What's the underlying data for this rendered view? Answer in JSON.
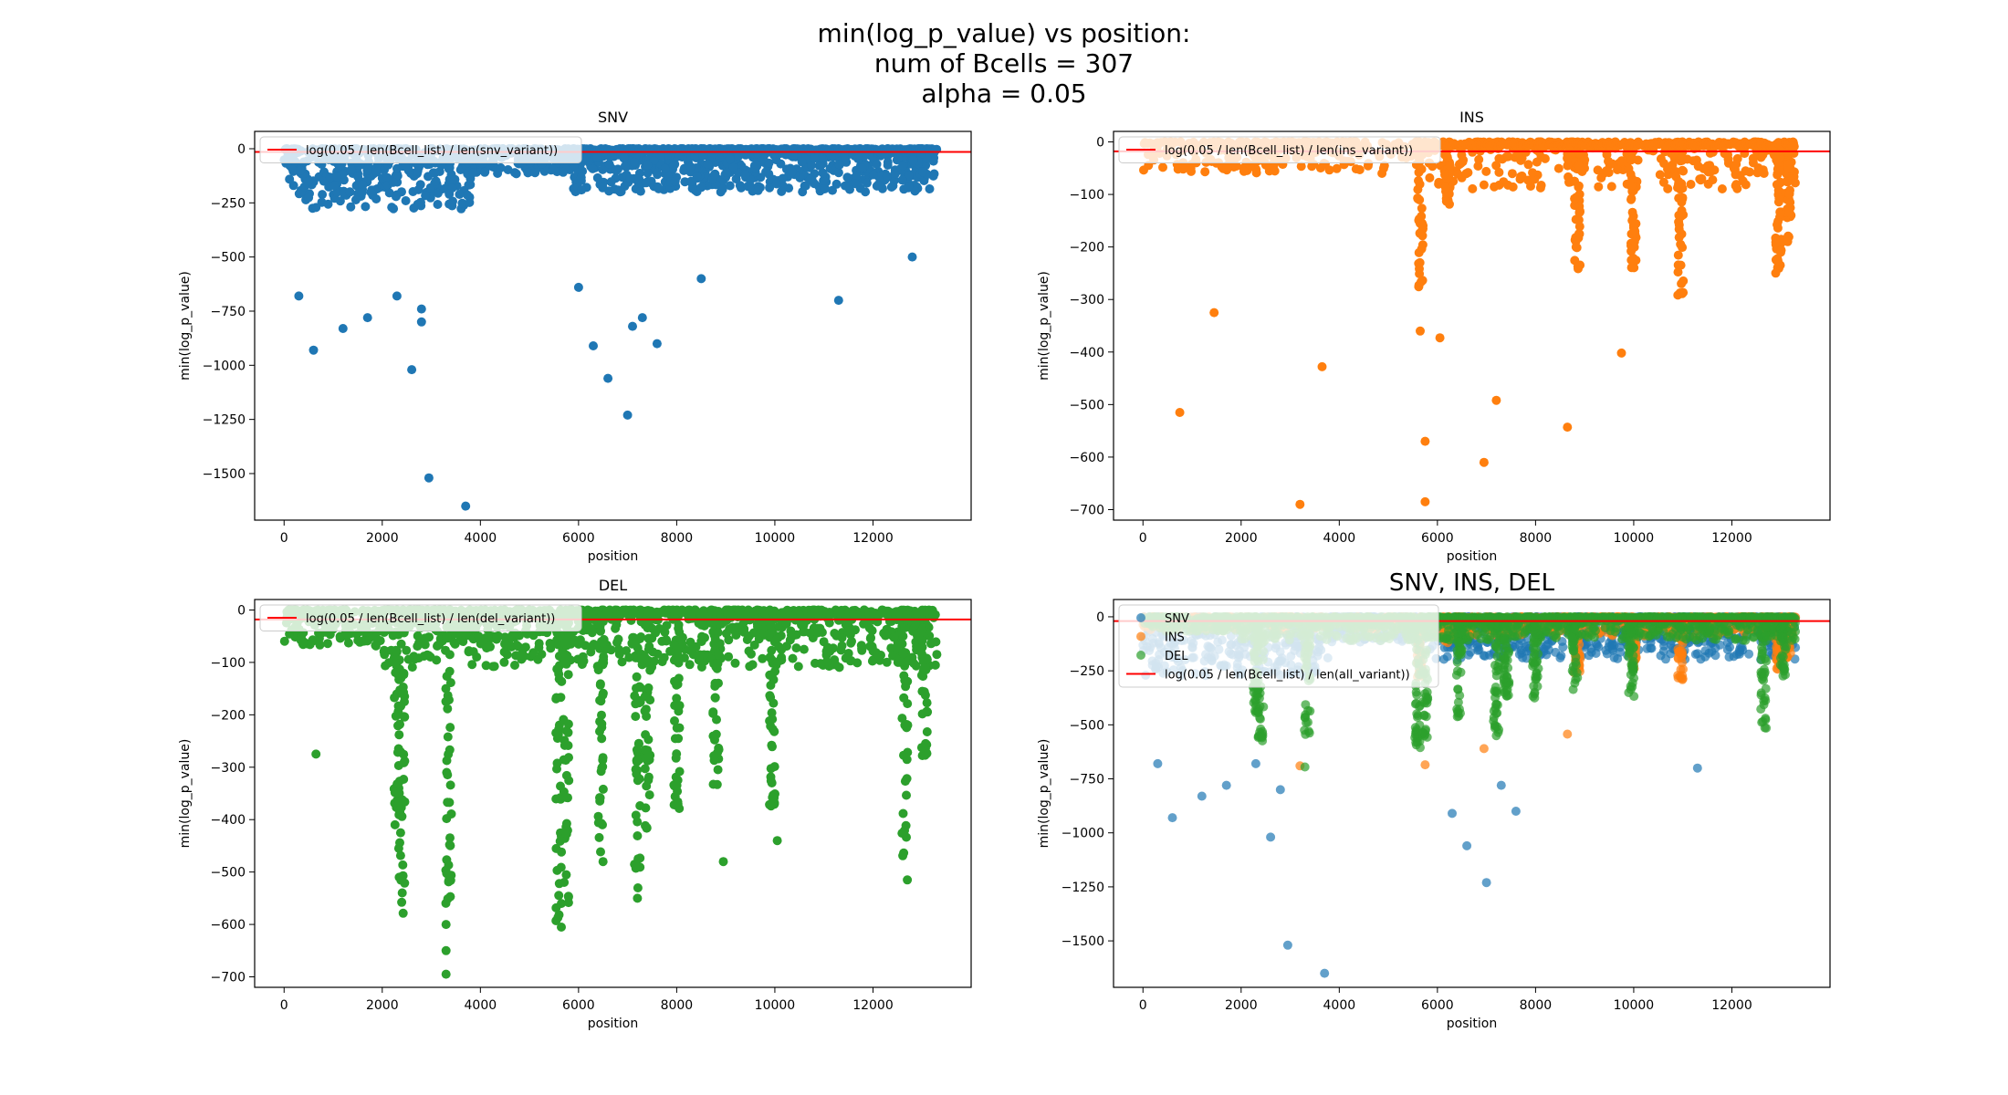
{
  "figure": {
    "suptitle": [
      "min(log_p_value) vs position:",
      "num of Bcells = 307",
      "alpha = 0.05"
    ]
  },
  "colors": {
    "snv": "#1f77b4",
    "ins": "#ff7f0e",
    "del": "#2ca02c",
    "threshold": "#ff0000",
    "axis": "#000000"
  },
  "chart_data": [
    {
      "type": "scatter",
      "title": "SNV",
      "xlabel": "position",
      "ylabel": "min(log_p_value)",
      "xlim": [
        -600,
        14000
      ],
      "ylim": [
        -1715,
        80
      ],
      "xticks": [
        0,
        2000,
        4000,
        6000,
        8000,
        10000,
        12000
      ],
      "yticks": [
        0,
        -250,
        -500,
        -750,
        -1000,
        -1250,
        -1500
      ],
      "threshold": {
        "label": "log(0.05 / len(Bcell_list) / len(snv_variant))",
        "value": -15
      },
      "legend_loc": "upper left",
      "series": [
        {
          "key": "snv",
          "outliers": [
            [
              300,
              -680
            ],
            [
              600,
              -930
            ],
            [
              1200,
              -830
            ],
            [
              1700,
              -780
            ],
            [
              2300,
              -680
            ],
            [
              2600,
              -1020
            ],
            [
              2800,
              -740
            ],
            [
              2800,
              -800
            ],
            [
              2950,
              -1520
            ],
            [
              3700,
              -1650
            ],
            [
              6000,
              -640
            ],
            [
              6300,
              -910
            ],
            [
              6600,
              -1060
            ],
            [
              7000,
              -1230
            ],
            [
              7100,
              -820
            ],
            [
              7300,
              -780
            ],
            [
              7600,
              -900
            ],
            [
              8500,
              -600
            ],
            [
              11300,
              -700
            ],
            [
              12800,
              -500
            ]
          ]
        }
      ]
    },
    {
      "type": "scatter",
      "title": "INS",
      "xlabel": "position",
      "ylabel": "min(log_p_value)",
      "xlim": [
        -600,
        14000
      ],
      "ylim": [
        -720,
        20
      ],
      "xticks": [
        0,
        2000,
        4000,
        6000,
        8000,
        10000,
        12000
      ],
      "yticks": [
        0,
        -100,
        -200,
        -300,
        -400,
        -500,
        -600,
        -700
      ],
      "threshold": {
        "label": "log(0.05 / len(Bcell_list) / len(ins_variant))",
        "value": -18
      },
      "legend_loc": "upper left",
      "series": [
        {
          "key": "ins",
          "outliers": [
            [
              750,
              -515
            ],
            [
              1450,
              -325
            ],
            [
              3200,
              -690
            ],
            [
              3650,
              -428
            ],
            [
              5650,
              -360
            ],
            [
              5750,
              -570
            ],
            [
              5750,
              -685
            ],
            [
              6050,
              -373
            ],
            [
              6950,
              -610
            ],
            [
              7200,
              -492
            ],
            [
              8650,
              -543
            ],
            [
              9750,
              -402
            ]
          ]
        }
      ]
    },
    {
      "type": "scatter",
      "title": "DEL",
      "xlabel": "position",
      "ylabel": "min(log_p_value)",
      "xlim": [
        -600,
        14000
      ],
      "ylim": [
        -720,
        20
      ],
      "xticks": [
        0,
        2000,
        4000,
        6000,
        8000,
        10000,
        12000
      ],
      "yticks": [
        0,
        -100,
        -200,
        -300,
        -400,
        -500,
        -600,
        -700
      ],
      "threshold": {
        "label": "log(0.05 / len(Bcell_list) / len(del_variant))",
        "value": -18
      },
      "legend_loc": "upper left",
      "series": [
        {
          "key": "del",
          "outliers": [
            [
              650,
              -275
            ],
            [
              3300,
              -695
            ],
            [
              3300,
              -650
            ],
            [
              3300,
              -600
            ],
            [
              5650,
              -605
            ],
            [
              5650,
              -560
            ],
            [
              6500,
              -480
            ],
            [
              7200,
              -550
            ],
            [
              8950,
              -480
            ],
            [
              10050,
              -440
            ],
            [
              12700,
              -515
            ]
          ]
        }
      ]
    },
    {
      "type": "scatter",
      "title": "SNV, INS, DEL",
      "xlabel": "position",
      "ylabel": "min(log_p_value)",
      "xlim": [
        -600,
        14000
      ],
      "ylim": [
        -1715,
        80
      ],
      "xticks": [
        0,
        2000,
        4000,
        6000,
        8000,
        10000,
        12000
      ],
      "yticks": [
        0,
        -250,
        -500,
        -750,
        -1000,
        -1250,
        -1500
      ],
      "threshold": {
        "label": "log(0.05 / len(Bcell_list) / len(all_variant))",
        "value": -20
      },
      "legend_loc": "upper left",
      "series": [
        {
          "name": "SNV",
          "key": "snv",
          "outliers": [
            [
              300,
              -680
            ],
            [
              600,
              -930
            ],
            [
              1200,
              -830
            ],
            [
              1700,
              -780
            ],
            [
              2300,
              -680
            ],
            [
              2600,
              -1020
            ],
            [
              2800,
              -800
            ],
            [
              2950,
              -1520
            ],
            [
              3700,
              -1650
            ],
            [
              6300,
              -910
            ],
            [
              6600,
              -1060
            ],
            [
              7000,
              -1230
            ],
            [
              7300,
              -780
            ],
            [
              7600,
              -900
            ],
            [
              11300,
              -700
            ]
          ]
        },
        {
          "name": "INS",
          "key": "ins",
          "outliers": [
            [
              3200,
              -690
            ],
            [
              5750,
              -685
            ],
            [
              6950,
              -610
            ],
            [
              8650,
              -543
            ]
          ]
        },
        {
          "name": "DEL",
          "key": "del",
          "outliers": [
            [
              3300,
              -695
            ],
            [
              5650,
              -605
            ],
            [
              7200,
              -550
            ],
            [
              12700,
              -515
            ]
          ]
        }
      ]
    }
  ]
}
